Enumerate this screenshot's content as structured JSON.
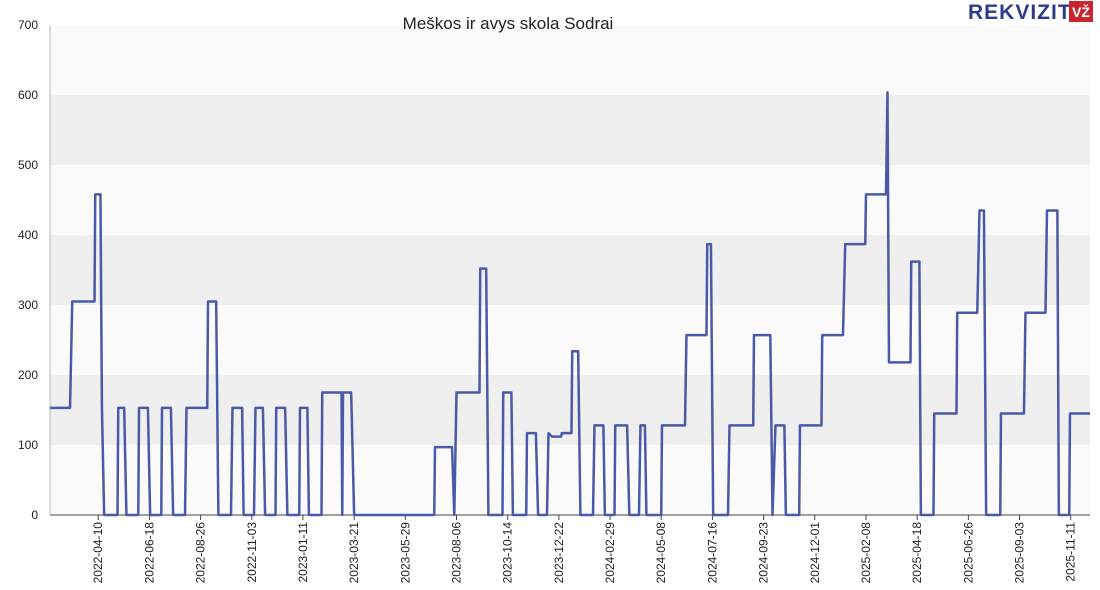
{
  "chart_data": {
    "type": "line",
    "title": "Meškos ir avys skola Sodrai",
    "logo": "REKVIZITAI",
    "logo_badge": "VŽ",
    "color": "#4a5aa8",
    "grid": true,
    "xlim": [
      "2022-02-04",
      "2025-12-07"
    ],
    "xticks": [
      "2022-04-10",
      "2022-06-18",
      "2022-08-26",
      "2022-11-03",
      "2023-01-11",
      "2023-03-21",
      "2023-05-29",
      "2023-08-06",
      "2023-10-14",
      "2023-12-22",
      "2024-02-29",
      "2024-05-08",
      "2024-07-16",
      "2024-09-23",
      "2024-12-01",
      "2025-02-08",
      "2025-04-18",
      "2025-06-26",
      "2025-09-03",
      "2025-11-11"
    ],
    "ylim": [
      0,
      700
    ],
    "yticks": [
      0,
      100,
      200,
      300,
      400,
      500,
      600,
      700
    ],
    "x": [
      "2022-02-04",
      "2022-03-03",
      "2022-03-06",
      "2022-04-05",
      "2022-04-06",
      "2022-04-13",
      "2022-04-15",
      "2022-04-18",
      "2022-05-06",
      "2022-05-07",
      "2022-05-15",
      "2022-05-18",
      "2022-06-03",
      "2022-06-04",
      "2022-06-16",
      "2022-06-19",
      "2022-07-04",
      "2022-07-05",
      "2022-07-17",
      "2022-07-20",
      "2022-08-05",
      "2022-08-07",
      "2022-09-04",
      "2022-09-05",
      "2022-09-16",
      "2022-09-19",
      "2022-10-06",
      "2022-10-08",
      "2022-10-21",
      "2022-10-23",
      "2022-11-06",
      "2022-11-08",
      "2022-11-18",
      "2022-11-21",
      "2022-12-05",
      "2022-12-06",
      "2022-12-18",
      "2022-12-21",
      "2023-01-06",
      "2023-01-07",
      "2023-01-17",
      "2023-01-19",
      "2023-02-05",
      "2023-02-06",
      "2023-03-04",
      "2023-03-05",
      "2023-03-06",
      "2023-03-17",
      "2023-03-21",
      "2023-07-07",
      "2023-07-08",
      "2023-07-31",
      "2023-08-03",
      "2023-08-06",
      "2023-09-06",
      "2023-09-07",
      "2023-09-15",
      "2023-09-18",
      "2023-10-07",
      "2023-10-08",
      "2023-10-19",
      "2023-10-21",
      "2023-11-08",
      "2023-11-09",
      "2023-11-21",
      "2023-11-24",
      "2023-12-06",
      "2023-12-08",
      "2023-12-13",
      "2023-12-25",
      "2023-12-26",
      "2024-01-08",
      "2024-01-09",
      "2024-01-17",
      "2024-01-20",
      "2024-02-06",
      "2024-02-08",
      "2024-02-20",
      "2024-02-22",
      "2024-03-06",
      "2024-03-07",
      "2024-03-23",
      "2024-03-26",
      "2024-04-08",
      "2024-04-10",
      "2024-04-16",
      "2024-04-18",
      "2024-05-08",
      "2024-05-09",
      "2024-06-09",
      "2024-06-11",
      "2024-07-08",
      "2024-07-09",
      "2024-07-14",
      "2024-07-17",
      "2024-08-06",
      "2024-08-08",
      "2024-09-09",
      "2024-09-10",
      "2024-10-02",
      "2024-10-05",
      "2024-10-09",
      "2024-10-21",
      "2024-10-23",
      "2024-11-10",
      "2024-11-11",
      "2024-12-10",
      "2024-12-11",
      "2025-01-08",
      "2025-01-11",
      "2025-02-07",
      "2025-02-08",
      "2025-03-07",
      "2025-03-09",
      "2025-03-11",
      "2025-04-09",
      "2025-04-10",
      "2025-04-21",
      "2025-04-23",
      "2025-05-10",
      "2025-05-11",
      "2025-06-10",
      "2025-06-11",
      "2025-07-08",
      "2025-07-11",
      "2025-07-17",
      "2025-07-20",
      "2025-08-08",
      "2025-08-09",
      "2025-09-09",
      "2025-09-11",
      "2025-10-08",
      "2025-10-10",
      "2025-10-24",
      "2025-10-26",
      "2025-11-09",
      "2025-11-10",
      "2025-12-07"
    ],
    "values": [
      153,
      153,
      305,
      305,
      458,
      458,
      153,
      0,
      0,
      153,
      153,
      0,
      0,
      153,
      153,
      0,
      0,
      153,
      153,
      0,
      0,
      153,
      153,
      305,
      305,
      0,
      0,
      153,
      153,
      0,
      0,
      153,
      153,
      0,
      0,
      153,
      153,
      0,
      0,
      153,
      153,
      0,
      0,
      175,
      175,
      0,
      175,
      175,
      0,
      0,
      97,
      97,
      0,
      175,
      175,
      352,
      352,
      0,
      0,
      175,
      175,
      0,
      0,
      117,
      117,
      0,
      0,
      117,
      112,
      112,
      117,
      117,
      234,
      234,
      0,
      0,
      128,
      128,
      0,
      0,
      128,
      128,
      0,
      0,
      128,
      128,
      0,
      0,
      128,
      128,
      257,
      257,
      387,
      387,
      0,
      0,
      128,
      128,
      257,
      257,
      0,
      128,
      128,
      0,
      0,
      128,
      128,
      257,
      257,
      387,
      387,
      458,
      458,
      604,
      218,
      218,
      362,
      362,
      0,
      0,
      145,
      145,
      289,
      289,
      435,
      435,
      0,
      0,
      145,
      145,
      289,
      289,
      435,
      435,
      0,
      0,
      145,
      145
    ]
  }
}
